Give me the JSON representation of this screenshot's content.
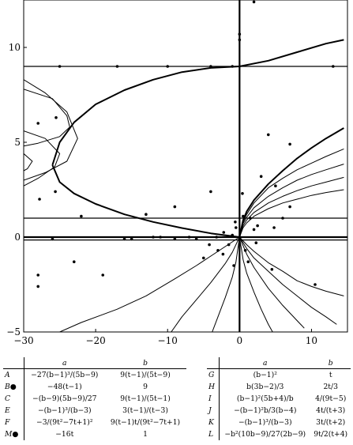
{
  "chart_data": {
    "type": "line",
    "title": "",
    "xlabel": "",
    "ylabel": "",
    "xlim": [
      -30,
      15
    ],
    "ylim": [
      -5,
      12.5
    ],
    "grid": false,
    "x_ticks": [
      -30,
      -20,
      -10,
      0,
      10
    ],
    "y_ticks": [
      -5,
      0,
      5,
      10
    ],
    "x_tick_labels": [
      "−30",
      "−20",
      "−10",
      "0",
      "10"
    ],
    "y_tick_labels": [
      "−5",
      "0",
      "5",
      "10"
    ],
    "series": [
      {
        "role": "curve",
        "values": [
          [
            -26,
            3.8
          ],
          [
            -25,
            5.0
          ],
          [
            -23,
            6.05
          ],
          [
            -20,
            7.0
          ],
          [
            -16,
            7.75
          ],
          [
            -12,
            8.3
          ],
          [
            -8,
            8.7
          ],
          [
            -4,
            8.92
          ],
          [
            0,
            9.0
          ],
          [
            4,
            9.3
          ],
          [
            8,
            9.75
          ],
          [
            12,
            10.2
          ],
          [
            14.5,
            10.4
          ]
        ]
      },
      {
        "role": "curve",
        "values": [
          [
            -26,
            3.8
          ],
          [
            -25,
            2.9
          ],
          [
            -23,
            2.3
          ],
          [
            -20,
            1.75
          ],
          [
            -16,
            1.2
          ],
          [
            -12,
            0.8
          ],
          [
            -8,
            0.48
          ],
          [
            -4,
            0.2
          ],
          [
            0,
            0.0
          ]
        ]
      },
      {
        "role": "curve",
        "values": [
          [
            0,
            0
          ],
          [
            0.5,
            0.9
          ],
          [
            1,
            1.35
          ],
          [
            2,
            1.95
          ],
          [
            4,
            2.8
          ],
          [
            6,
            3.5
          ],
          [
            8,
            4.15
          ],
          [
            10,
            4.7
          ],
          [
            12,
            5.2
          ],
          [
            14.5,
            5.75
          ]
        ]
      },
      {
        "role": "curve",
        "values": [
          [
            0,
            0
          ],
          [
            0.5,
            0.8
          ],
          [
            1,
            1.2
          ],
          [
            2,
            1.8
          ],
          [
            4,
            2.6
          ],
          [
            6,
            3.1
          ],
          [
            8,
            3.55
          ],
          [
            10,
            3.9
          ],
          [
            12,
            4.25
          ],
          [
            14.5,
            4.65
          ]
        ]
      },
      {
        "role": "curve",
        "values": [
          [
            0,
            0
          ],
          [
            0.5,
            0.72
          ],
          [
            1,
            1.05
          ],
          [
            2,
            1.55
          ],
          [
            4,
            2.15
          ],
          [
            6,
            2.6
          ],
          [
            8,
            3.0
          ],
          [
            10,
            3.3
          ],
          [
            12,
            3.55
          ],
          [
            14.5,
            3.85
          ]
        ]
      },
      {
        "role": "curve",
        "values": [
          [
            0,
            0
          ],
          [
            0.5,
            0.6
          ],
          [
            1,
            0.9
          ],
          [
            2,
            1.3
          ],
          [
            4,
            1.8
          ],
          [
            6,
            2.15
          ],
          [
            8,
            2.45
          ],
          [
            10,
            2.7
          ],
          [
            12,
            2.9
          ],
          [
            14.5,
            3.15
          ]
        ]
      },
      {
        "role": "curve",
        "values": [
          [
            0,
            0
          ],
          [
            0.5,
            0.5
          ],
          [
            1,
            0.75
          ],
          [
            2,
            1.1
          ],
          [
            4,
            1.5
          ],
          [
            6,
            1.8
          ],
          [
            8,
            2.0
          ],
          [
            10,
            2.2
          ],
          [
            12,
            2.35
          ],
          [
            14.5,
            2.5
          ]
        ]
      },
      {
        "role": "curve",
        "values": [
          [
            0,
            0
          ],
          [
            1,
            -0.4
          ],
          [
            2,
            -0.75
          ],
          [
            4,
            -1.35
          ],
          [
            6,
            -1.8
          ],
          [
            8,
            -2.3
          ],
          [
            10,
            -2.6
          ],
          [
            12,
            -2.85
          ],
          [
            14.5,
            -3.1
          ]
        ]
      },
      {
        "role": "curve",
        "values": [
          [
            0,
            0
          ],
          [
            1,
            -0.6
          ],
          [
            2,
            -1.1
          ],
          [
            4,
            -1.8
          ],
          [
            6,
            -2.5
          ],
          [
            8,
            -3.1
          ],
          [
            10,
            -3.7
          ],
          [
            12,
            -4.2
          ],
          [
            13.5,
            -4.6
          ]
        ]
      },
      {
        "role": "curve",
        "values": [
          [
            0,
            0
          ],
          [
            1,
            -0.9
          ],
          [
            2,
            -1.6
          ],
          [
            4,
            -2.7
          ],
          [
            6,
            -3.6
          ],
          [
            8,
            -4.4
          ],
          [
            9,
            -4.8
          ]
        ]
      },
      {
        "role": "curve",
        "values": [
          [
            0,
            0
          ],
          [
            0.5,
            -1.2
          ],
          [
            1,
            -1.9
          ],
          [
            2,
            -2.9
          ],
          [
            3,
            -3.8
          ],
          [
            4,
            -4.6
          ],
          [
            4.6,
            -5.0
          ]
        ]
      },
      {
        "role": "curve",
        "values": [
          [
            0,
            0
          ],
          [
            -2,
            -0.5
          ],
          [
            -4,
            -1.0
          ],
          [
            -6,
            -1.5
          ],
          [
            -9,
            -2.2
          ],
          [
            -13,
            -3.1
          ],
          [
            -17,
            -3.8
          ],
          [
            -22,
            -4.5
          ],
          [
            -25,
            -5.0
          ]
        ]
      },
      {
        "role": "curve",
        "values": [
          [
            0,
            0
          ],
          [
            -1,
            -0.8
          ],
          [
            -2,
            -1.4
          ],
          [
            -4,
            -2.4
          ],
          [
            -6,
            -3.3
          ],
          [
            -8,
            -4.2
          ],
          [
            -9.5,
            -5.0
          ]
        ]
      },
      {
        "role": "curve",
        "values": [
          [
            0,
            0
          ],
          [
            -0.5,
            -1.3
          ],
          [
            -1,
            -2.1
          ],
          [
            -2,
            -3.2
          ],
          [
            -3,
            -4.2
          ],
          [
            -3.8,
            -5.0
          ]
        ]
      },
      {
        "role": "curve",
        "values": [
          [
            -30,
            7.8
          ],
          [
            -26,
            7.3
          ],
          [
            -24,
            6.4
          ],
          [
            -23.6,
            5.8
          ],
          [
            -25,
            5.3
          ],
          [
            -28,
            4.95
          ],
          [
            -30,
            4.8
          ]
        ]
      },
      {
        "role": "curve",
        "values": [
          [
            -30,
            5.6
          ],
          [
            -27,
            5.2
          ],
          [
            -25,
            4.4
          ],
          [
            -25.7,
            3.7
          ],
          [
            -28,
            3.1
          ],
          [
            -30,
            2.7
          ]
        ]
      },
      {
        "role": "curve",
        "values": [
          [
            -30,
            8.3
          ],
          [
            -27,
            7.6
          ],
          [
            -24,
            6.6
          ],
          [
            -22.5,
            5.2
          ],
          [
            -24,
            4.0
          ],
          [
            -27,
            3.4
          ],
          [
            -30,
            3.0
          ]
        ]
      },
      {
        "role": "curve",
        "values": [
          [
            -30,
            4.4
          ],
          [
            -28.8,
            4.0
          ],
          [
            -29.5,
            3.6
          ],
          [
            -30,
            3.5
          ]
        ]
      },
      {
        "role": "hline",
        "y": 9.0
      },
      {
        "role": "hline",
        "y": 1.0
      },
      {
        "role": "hline",
        "y": 0.0,
        "thick": true
      },
      {
        "role": "hline",
        "y": -0.15
      },
      {
        "role": "vline",
        "x": 0.0,
        "thick": true
      },
      {
        "role": "points",
        "values": [
          [
            2,
            12.4
          ],
          [
            0,
            10.7
          ],
          [
            0,
            10.4
          ],
          [
            -25,
            9.0
          ],
          [
            -17,
            9.0
          ],
          [
            -10,
            9.0
          ],
          [
            -4,
            9.0
          ],
          [
            -1,
            9.0
          ],
          [
            13,
            9.0
          ],
          [
            -25.5,
            6.3
          ],
          [
            -28,
            6.0
          ],
          [
            -25.6,
            2.4
          ],
          [
            -27.8,
            2.0
          ],
          [
            -9,
            1.6
          ],
          [
            -13,
            1.2
          ],
          [
            -22,
            1.1
          ],
          [
            -4,
            2.4
          ],
          [
            5,
            2.7
          ],
          [
            4,
            5.4
          ],
          [
            7,
            4.9
          ],
          [
            3,
            3.2
          ],
          [
            -28,
            -2.0
          ],
          [
            -28,
            -2.6
          ],
          [
            -19,
            -2.0
          ],
          [
            -26,
            -0.1
          ],
          [
            -16,
            -0.1
          ],
          [
            -12,
            0.0
          ],
          [
            -7,
            0.0
          ],
          [
            -6,
            -0.1
          ],
          [
            -2.3,
            -0.9
          ],
          [
            -0.8,
            -1.5
          ],
          [
            1.2,
            -1.3
          ],
          [
            4.5,
            -1.7
          ],
          [
            10.5,
            -2.5
          ],
          [
            -23,
            -1.3
          ],
          [
            -5,
            -1.1
          ],
          [
            -3,
            -0.7
          ],
          [
            2,
            0.4
          ],
          [
            2.5,
            0.6
          ],
          [
            -1,
            0.1
          ],
          [
            -0.5,
            0.5
          ],
          [
            0.5,
            1.1
          ],
          [
            1.5,
            1.0
          ],
          [
            -3.2,
            0.0
          ],
          [
            -4.2,
            -0.4
          ],
          [
            -1.5,
            -0.4
          ],
          [
            0.8,
            -0.7
          ],
          [
            2.3,
            -0.3
          ],
          [
            -2.2,
            0.25
          ],
          [
            6,
            1.0
          ],
          [
            -11,
            0.0
          ],
          [
            -9,
            -0.1
          ],
          [
            -15,
            -0.1
          ],
          [
            4.8,
            0.5
          ],
          [
            7,
            1.6
          ],
          [
            -0.6,
            0.8
          ],
          [
            0.4,
            2.3
          ]
        ]
      }
    ]
  },
  "table_left": {
    "headers": [
      "",
      "a",
      "b"
    ],
    "rows": [
      {
        "label": "A",
        "marker": "",
        "a": "−27(b−1)³/(5b−9)",
        "b": "9(t−1)/(5t−9)"
      },
      {
        "label": "B",
        "marker": "●",
        "a": "−48(t−1)",
        "b": "9"
      },
      {
        "label": "C",
        "marker": "",
        "a": "−(b−9)(5b−9)/27",
        "b": "9(t−1)/(5t−1)"
      },
      {
        "label": "E",
        "marker": "",
        "a": "−(b−1)³/(b−3)",
        "b": "3(t−1)/(t−3)"
      },
      {
        "label": "F",
        "marker": "",
        "a": "−3/(9t²−7t+1)²",
        "b": "9(t−1)t/(9t²−7t+1)"
      },
      {
        "label": "M",
        "marker": "●",
        "a": "−16t",
        "b": "1"
      }
    ]
  },
  "table_right": {
    "headers": [
      "",
      "a",
      "b"
    ],
    "rows": [
      {
        "label": "G",
        "a": "(b−1)²",
        "b": "t"
      },
      {
        "label": "H",
        "a": "b(3b−2)/3",
        "b": "2t/3"
      },
      {
        "label": "I",
        "a": "(b−1)²(5b+4)/b",
        "b": "4/(9t−5)"
      },
      {
        "label": "J",
        "a": "−(b−1)²b/3(b−4)",
        "b": "4t/(t+3)"
      },
      {
        "label": "K",
        "a": "−(b−1)³/(b−3)",
        "b": "3t/(t+2)"
      },
      {
        "label": "L",
        "a": "−b²(10b−9)/27(2b−9)",
        "b": "9t/2(t+4)"
      }
    ]
  }
}
